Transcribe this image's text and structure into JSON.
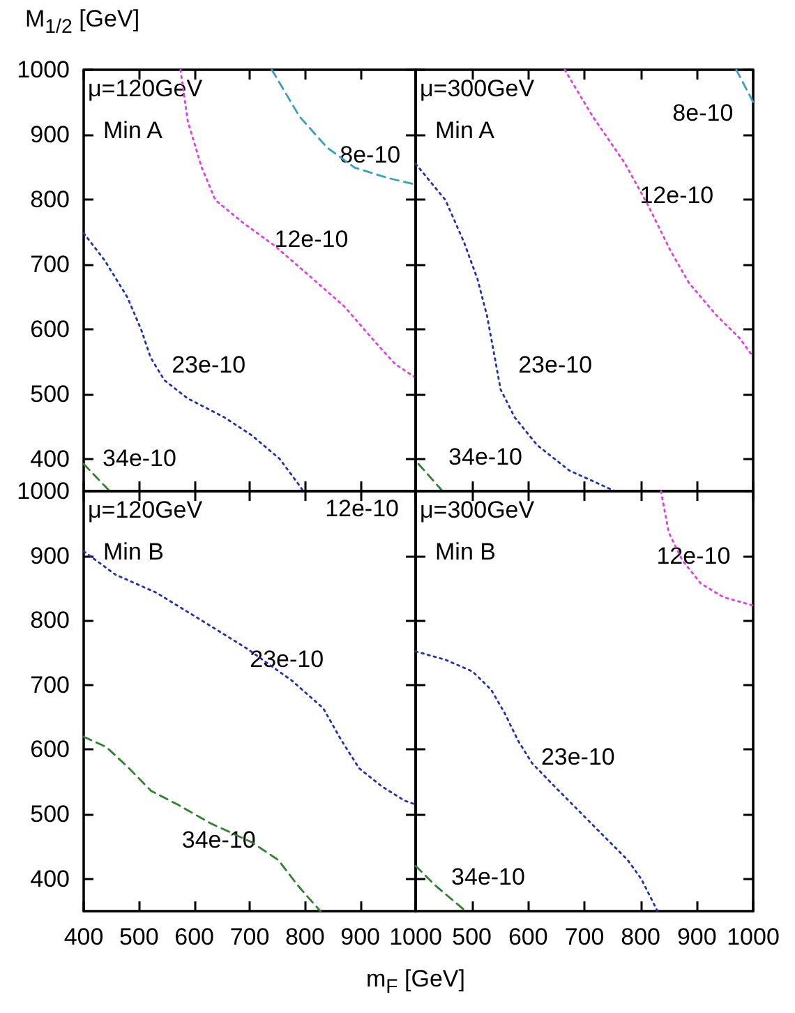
{
  "chart_data": [
    {
      "type": "line",
      "ylabel": "M$_{1/2}$ [GeV]",
      "xlim": [
        400,
        1000
      ],
      "ylim": [
        350,
        1000
      ],
      "xticks": [
        400,
        500,
        600,
        700,
        800,
        900,
        1000
      ],
      "yticks": [
        400,
        500,
        600,
        700,
        800,
        900,
        1000
      ],
      "tick_labels": "y",
      "grid": false,
      "legend": false,
      "marker": "none",
      "annotations": [
        "μ=120GeV",
        "Min A"
      ],
      "series": [
        {
          "name": "8e-10",
          "color": "#3aa0c0",
          "line_style": "dashed",
          "x": [
            740,
            790,
            840,
            890,
            950,
            1000
          ],
          "values": [
            1000,
            928,
            880,
            849,
            833,
            823
          ]
        },
        {
          "name": "12e-10",
          "color": "#e040e0",
          "line_style": "dotted",
          "x": [
            575,
            588,
            613,
            638,
            688,
            746,
            804,
            871,
            929,
            963,
            1000
          ],
          "values": [
            1000,
            921,
            850,
            799,
            764,
            728,
            685,
            635,
            578,
            546,
            525
          ]
        },
        {
          "name": "23e-10",
          "color": "#2030b0",
          "line_style": "dotted",
          "x": [
            400,
            438,
            479,
            504,
            521,
            546,
            588,
            654,
            704,
            754,
            788,
            797
          ],
          "values": [
            748,
            706,
            649,
            599,
            556,
            521,
            493,
            464,
            436,
            400,
            361,
            350
          ]
        },
        {
          "name": "34e-10",
          "color": "#308030",
          "line_style": "dashed",
          "x": [
            400,
            447
          ],
          "values": [
            392,
            350
          ]
        }
      ]
    },
    {
      "type": "line",
      "xlim": [
        400,
        1000
      ],
      "ylim": [
        350,
        1000
      ],
      "xticks": [
        400,
        500,
        600,
        700,
        800,
        900,
        1000
      ],
      "yticks": [
        400,
        500,
        600,
        700,
        800,
        900,
        1000
      ],
      "tick_labels": false,
      "grid": false,
      "legend": false,
      "marker": "none",
      "annotations": [
        "μ=300GeV",
        "Min A"
      ],
      "series": [
        {
          "name": "8e-10",
          "color": "#3aa0c0",
          "line_style": "dashed",
          "x": [
            970,
            1000
          ],
          "values": [
            1000,
            950
          ]
        },
        {
          "name": "12e-10",
          "color": "#e040e0",
          "line_style": "dotted",
          "x": [
            665,
            714,
            771,
            812,
            853,
            886,
            935,
            976,
            1000
          ],
          "values": [
            1000,
            929,
            857,
            793,
            721,
            671,
            621,
            586,
            557
          ]
        },
        {
          "name": "23e-10",
          "color": "#2030b0",
          "line_style": "dotted",
          "x": [
            400,
            453,
            486,
            510,
            527,
            539,
            551,
            576,
            616,
            673,
            739,
            755
          ],
          "values": [
            855,
            799,
            734,
            677,
            620,
            564,
            507,
            464,
            421,
            382,
            356,
            350
          ]
        },
        {
          "name": "34e-10",
          "color": "#308030",
          "line_style": "dashed",
          "x": [
            405,
            448
          ],
          "values": [
            392,
            350
          ]
        }
      ]
    },
    {
      "type": "line",
      "xlabel": "m$_{F}$ [GeV]",
      "xlim": [
        400,
        1000
      ],
      "ylim": [
        350,
        1000
      ],
      "xticks": [
        400,
        500,
        600,
        700,
        800,
        900,
        1000
      ],
      "yticks": [
        400,
        500,
        600,
        700,
        800,
        900,
        1000
      ],
      "grid": false,
      "legend": false,
      "marker": "none",
      "annotations": [
        "μ=120GeV",
        "Min B",
        "12e-10"
      ],
      "series": [
        {
          "name": "23e-10",
          "color": "#2030b0",
          "line_style": "dotted",
          "x": [
            400,
            457,
            531,
            613,
            694,
            776,
            833,
            866,
            898,
            939,
            980,
            1000
          ],
          "values": [
            907,
            871,
            843,
            800,
            757,
            707,
            664,
            614,
            571,
            543,
            521,
            515
          ]
        },
        {
          "name": "34e-10",
          "color": "#308030",
          "line_style": "dashed",
          "x": [
            400,
            441,
            482,
            522,
            572,
            629,
            703,
            752,
            784,
            805,
            828
          ],
          "values": [
            620,
            604,
            571,
            536,
            514,
            486,
            457,
            429,
            393,
            372,
            350
          ]
        }
      ]
    },
    {
      "type": "line",
      "xlim": [
        400,
        1000
      ],
      "ylim": [
        350,
        1000
      ],
      "xticks": [
        {
          "value": 400,
          "label": null
        },
        500,
        600,
        700,
        800,
        900,
        1000
      ],
      "yticks": [
        400,
        500,
        600,
        700,
        800,
        900,
        1000
      ],
      "tick_labels": "x",
      "grid": false,
      "legend": false,
      "marker": "none",
      "annotations": [
        "μ=300GeV",
        "Min B"
      ],
      "series": [
        {
          "name": "12e-10",
          "color": "#e040e0",
          "line_style": "dotted",
          "x": [
            836,
            850,
            874,
            907,
            947,
            992,
            1000
          ],
          "values": [
            1000,
            936,
            893,
            857,
            836,
            825,
            823
          ]
        },
        {
          "name": "23e-10",
          "color": "#2030b0",
          "line_style": "dotted",
          "x": [
            400,
            453,
            501,
            534,
            558,
            582,
            607,
            647,
            696,
            737,
            777,
            801,
            830
          ],
          "values": [
            752,
            739,
            721,
            693,
            657,
            614,
            579,
            543,
            500,
            464,
            429,
            400,
            350
          ]
        },
        {
          "name": "34e-10",
          "color": "#308030",
          "line_style": "dashed",
          "x": [
            400,
            436,
            489
          ],
          "values": [
            420,
            389,
            350
          ]
        }
      ]
    }
  ]
}
